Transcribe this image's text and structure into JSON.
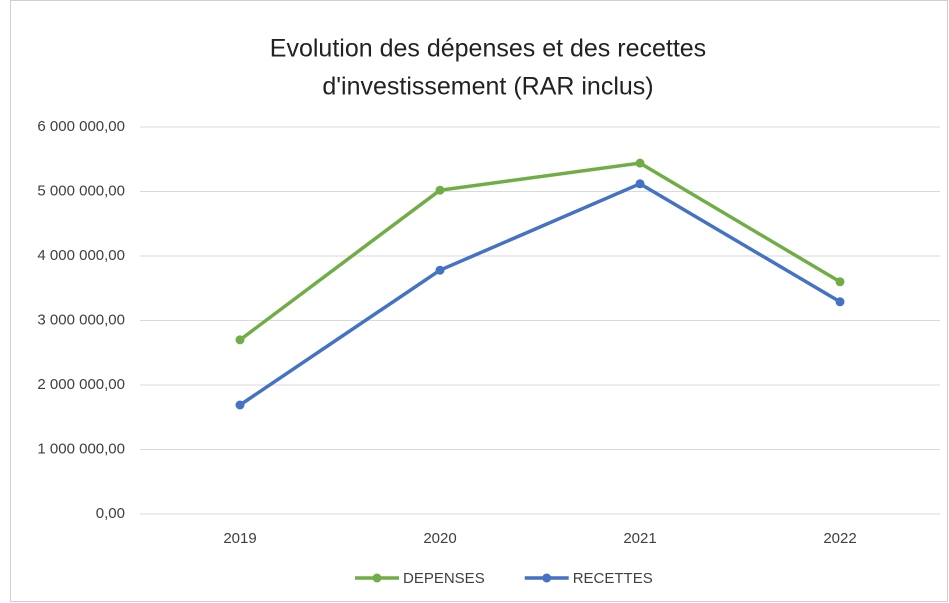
{
  "chart_data": {
    "type": "line",
    "title": [
      "Evolution des dépenses et des recettes",
      "d'investissement (RAR inclus)"
    ],
    "categories": [
      "2019",
      "2020",
      "2021",
      "2022"
    ],
    "series": [
      {
        "name": "DEPENSES",
        "color": "#70ad47",
        "values": [
          2700000,
          5020000,
          5440000,
          3600000
        ]
      },
      {
        "name": "RECETTES",
        "color": "#4472c4",
        "values": [
          1690000,
          3780000,
          5120000,
          3290000
        ]
      }
    ],
    "ylim": [
      0,
      6000000
    ],
    "yticks": [
      {
        "value": 0,
        "label": "0,00"
      },
      {
        "value": 1000000,
        "label": "1 000 000,00"
      },
      {
        "value": 2000000,
        "label": "2 000 000,00"
      },
      {
        "value": 3000000,
        "label": "3 000 000,00"
      },
      {
        "value": 4000000,
        "label": "4 000 000,00"
      },
      {
        "value": 5000000,
        "label": "5 000 000,00"
      },
      {
        "value": 6000000,
        "label": "6 000 000,00"
      }
    ],
    "grid": true,
    "legend": "bottom"
  }
}
